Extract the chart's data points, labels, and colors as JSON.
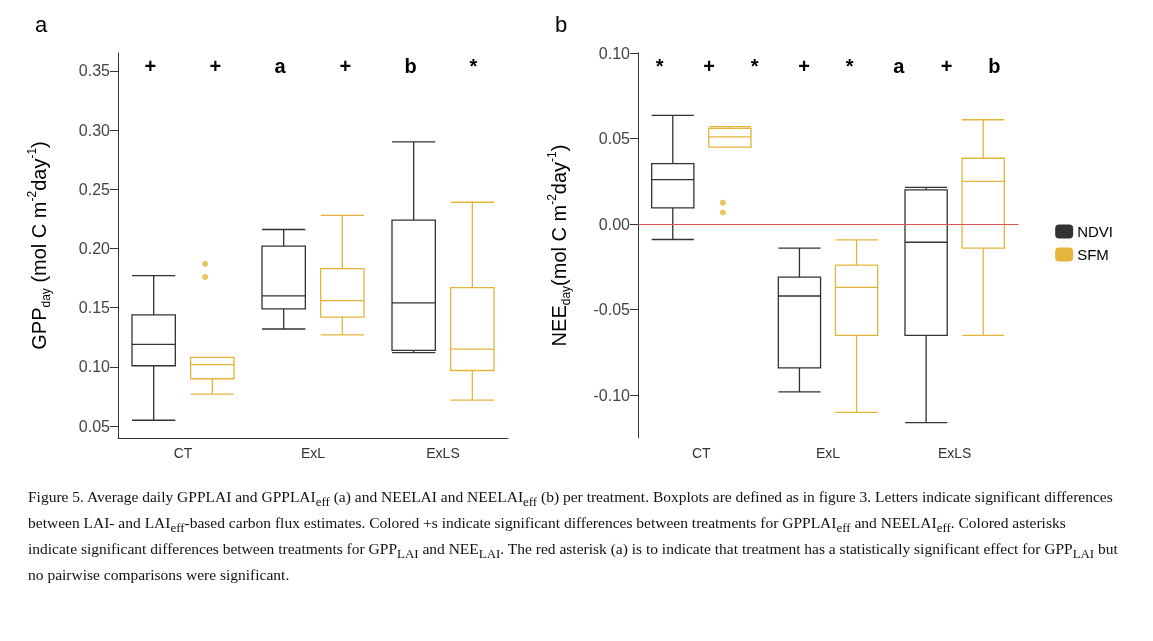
{
  "chart_data": [
    {
      "type": "box",
      "title": "a",
      "ylabel": "GPP$_{day}$ (mol C m$^{-2}$day$^{-1}$)",
      "categories": [
        "CT",
        "ExL",
        "ExLS"
      ],
      "ylim": [
        0.04,
        0.365
      ],
      "yticks": [
        0.05,
        {
          "value": 0.1,
          "label": "0.10"
        },
        0.15,
        {
          "value": 0.2,
          "label": "0.20"
        },
        0.25,
        {
          "value": 0.3,
          "label": "0.30"
        },
        0.35
      ],
      "series": [
        {
          "color": "#333333",
          "boxes": [
            {
              "low": 0.055,
              "q1": 0.101,
              "median": 0.119,
              "q3": 0.144,
              "high": 0.177
            },
            {
              "low": 0.132,
              "q1": 0.149,
              "median": 0.16,
              "q3": 0.202,
              "high": 0.216
            },
            {
              "low": 0.112,
              "q1": 0.114,
              "median": 0.154,
              "q3": 0.224,
              "high": 0.29
            }
          ]
        },
        {
          "color": "#e3b53a",
          "boxes": [
            {
              "low": 0.077,
              "q1": 0.09,
              "median": 0.102,
              "q3": 0.108,
              "high": 0.108,
              "outliers": [
                0.187,
                0.176
              ]
            },
            {
              "low": 0.127,
              "q1": 0.142,
              "median": 0.156,
              "q3": 0.183,
              "high": 0.228
            },
            {
              "low": 0.072,
              "q1": 0.097,
              "median": 0.115,
              "q3": 0.167,
              "high": 0.239
            }
          ]
        }
      ],
      "annotations": [
        "+",
        "+",
        "a",
        "+",
        "b",
        "*",
        "Figure 5. Average daily GPPLAI and GPPLAI$_{eff}$ (a) and NEELAI and NEELAI$_{eff}$ (b) per treatment. Boxplots are defined as in figure 3. Letters indicate significant differences between LAI- and LAI$_{eff}$-based carbon flux estimates. Colored +s indicate significant differences between treatments for GPPLAI$_{eff}$ and NEELAI$_{eff}$. Colored asterisks indicate significant differences between treatments for GPP$_{LAI}$ and NEE$_{LAI}$. The red asterisk (a) is to indicate that treatment has a statistically significant effect for GPP$_{LAI}$ but no pairwise comparisons were significant."
      ],
      "grid": false,
      "legend": false
    },
    {
      "type": "box",
      "title": "b",
      "ylabel": "NEE$_{day}$(mol C m$^{-2}$day$^{-1}$)",
      "categories": [
        "CT",
        "ExL",
        "ExLS"
      ],
      "ylim": [
        -0.125,
        0.1
      ],
      "yticks": [
        {
          "value": -0.1,
          "label": "-0.10"
        },
        -0.05,
        {
          "value": 0,
          "label": "0.00"
        },
        0.05,
        {
          "value": 0.1,
          "label": "0.10"
        }
      ],
      "series": [
        {
          "name": "NDVI",
          "color": "#333333",
          "boxes": [
            {
              "low": -0.009,
              "q1": 0.0095,
              "median": 0.026,
              "q3": 0.0354,
              "high": 0.0635
            },
            {
              "low": -0.098,
              "q1": -0.084,
              "median": -0.042,
              "q3": -0.031,
              "high": -0.014
            },
            {
              "low": -0.116,
              "q1": -0.065,
              "median": -0.0106,
              "q3": 0.02,
              "high": 0.0215
            }
          ]
        },
        {
          "name": "SFM",
          "color": "#e3b53a",
          "boxes": [
            {
              "low": 0.045,
              "q1": 0.045,
              "median": 0.051,
              "q3": 0.056,
              "high": 0.057,
              "outliers": [
                0.0125,
                0.0068
              ]
            },
            {
              "low": -0.11,
              "q1": -0.065,
              "median": -0.037,
              "q3": -0.024,
              "high": -0.0092
            },
            {
              "low": -0.065,
              "q1": -0.014,
              "median": 0.025,
              "q3": 0.0385,
              "high": 0.061
            }
          ]
        }
      ],
      "ref_lines": [
        {
          "axis": "y",
          "value": 0,
          "color": "#d9534f"
        }
      ],
      "annotations": [
        "*",
        "+",
        "*",
        "+",
        "*",
        "a",
        "+",
        "b"
      ],
      "grid": false,
      "legend": "right"
    }
  ]
}
